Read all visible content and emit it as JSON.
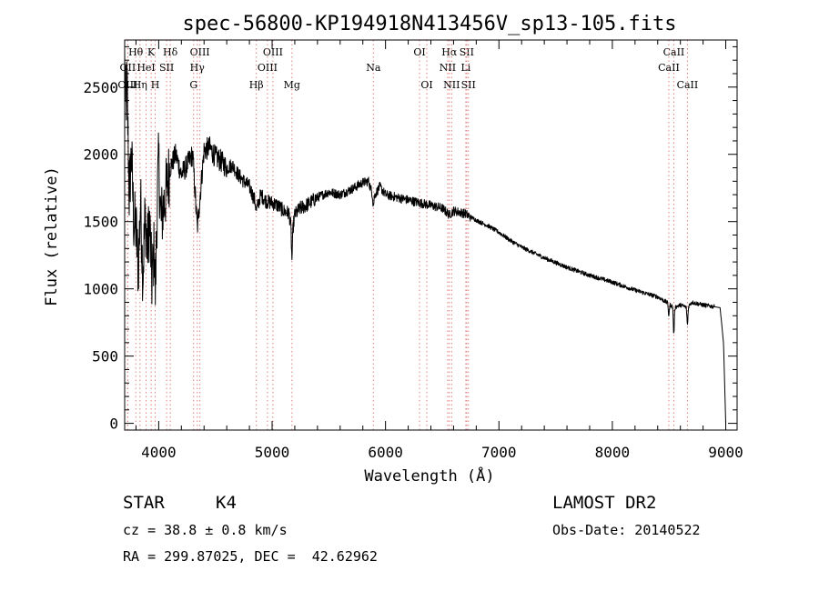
{
  "chart_data": {
    "type": "line",
    "title": "spec-56800-KP194918N413456V_sp13-105.fits",
    "xlabel": "Wavelength (Å)",
    "ylabel": "Flux (relative)",
    "xlim": [
      3700,
      9100
    ],
    "ylim": [
      -50,
      2850
    ],
    "xticks": [
      4000,
      5000,
      6000,
      7000,
      8000,
      9000
    ],
    "yticks": [
      0,
      500,
      1000,
      1500,
      2000,
      2500
    ],
    "grid": false,
    "line_color": "#000000",
    "marker_line_color": "#e08080",
    "spectrum_anchors": {
      "x": [
        3700,
        3710,
        3720,
        3740,
        3760,
        3780,
        3800,
        3820,
        3840,
        3860,
        3880,
        3900,
        3920,
        3940,
        3960,
        3970,
        3990,
        4000,
        4020,
        4050,
        4080,
        4100,
        4150,
        4200,
        4250,
        4300,
        4340,
        4400,
        4450,
        4500,
        4550,
        4600,
        4650,
        4700,
        4750,
        4800,
        4850,
        4861,
        4900,
        4950,
        5000,
        5050,
        5100,
        5150,
        5175,
        5200,
        5250,
        5300,
        5350,
        5400,
        5500,
        5600,
        5700,
        5800,
        5850,
        5893,
        5950,
        6000,
        6100,
        6200,
        6300,
        6400,
        6500,
        6563,
        6600,
        6700,
        6800,
        6900,
        7000,
        7100,
        7200,
        7400,
        7600,
        7800,
        8000,
        8200,
        8400,
        8498,
        8542,
        8600,
        8662,
        8700,
        8800,
        8950,
        8980,
        9000
      ],
      "y": [
        2700,
        2300,
        2550,
        1700,
        2000,
        1500,
        1450,
        1150,
        1650,
        1100,
        1550,
        1300,
        1500,
        1050,
        1300,
        980,
        1750,
        1950,
        1500,
        1650,
        1800,
        1900,
        2000,
        1850,
        1920,
        2000,
        1450,
        2030,
        2050,
        1980,
        1950,
        1900,
        1920,
        1850,
        1800,
        1760,
        1650,
        1580,
        1700,
        1650,
        1640,
        1620,
        1580,
        1560,
        1400,
        1550,
        1600,
        1620,
        1650,
        1680,
        1720,
        1700,
        1740,
        1790,
        1800,
        1680,
        1760,
        1700,
        1680,
        1660,
        1640,
        1620,
        1600,
        1550,
        1580,
        1560,
        1510,
        1470,
        1420,
        1360,
        1310,
        1230,
        1160,
        1100,
        1050,
        990,
        940,
        890,
        860,
        880,
        860,
        900,
        880,
        860,
        600,
        0
      ]
    },
    "absorption_dips": [
      {
        "x": 5175,
        "depth": 180
      },
      {
        "x": 5893,
        "depth": 60
      },
      {
        "x": 8498,
        "depth": 90
      },
      {
        "x": 8542,
        "depth": 200
      },
      {
        "x": 8662,
        "depth": 130
      }
    ],
    "line_markers": [
      {
        "label": "Hθ",
        "x": 3798,
        "row": 0
      },
      {
        "label": "K",
        "x": 3934,
        "row": 0
      },
      {
        "label": "Hδ",
        "x": 4102,
        "row": 0
      },
      {
        "label": "OIII",
        "x": 4363,
        "row": 0
      },
      {
        "label": "OIII",
        "x": 5007,
        "row": 0
      },
      {
        "label": "OI",
        "x": 6300,
        "row": 0
      },
      {
        "label": "Hα",
        "x": 6563,
        "row": 0
      },
      {
        "label": "SII",
        "x": 6716,
        "row": 0
      },
      {
        "label": "CaII",
        "x": 8542,
        "row": 0
      },
      {
        "label": "OII",
        "x": 3727,
        "row": 1
      },
      {
        "label": "HeI",
        "x": 3889,
        "row": 1
      },
      {
        "label": "SII",
        "x": 4070,
        "row": 1
      },
      {
        "label": "Hγ",
        "x": 4340,
        "row": 1
      },
      {
        "label": "OIII",
        "x": 4959,
        "row": 1
      },
      {
        "label": "Na",
        "x": 5893,
        "row": 1
      },
      {
        "label": "NII",
        "x": 6548,
        "row": 1
      },
      {
        "label": "Li",
        "x": 6708,
        "row": 1
      },
      {
        "label": "CaII",
        "x": 8498,
        "row": 1
      },
      {
        "label": "OIII",
        "x": 3727,
        "row": 2
      },
      {
        "label": "Hη",
        "x": 3835,
        "row": 2
      },
      {
        "label": "H",
        "x": 3969,
        "row": 2
      },
      {
        "label": "G",
        "x": 4308,
        "row": 2
      },
      {
        "label": "Hβ",
        "x": 4861,
        "row": 2
      },
      {
        "label": "Mg",
        "x": 5175,
        "row": 2
      },
      {
        "label": "OI",
        "x": 6364,
        "row": 2
      },
      {
        "label": "NII",
        "x": 6583,
        "row": 2
      },
      {
        "label": "SII",
        "x": 6731,
        "row": 2
      },
      {
        "label": "CaII",
        "x": 8662,
        "row": 2
      }
    ]
  },
  "info": {
    "object_class": "STAR",
    "subclass": "K4",
    "survey": "LAMOST DR2",
    "cz": "cz = 38.8 ± 0.8 km/s",
    "obs_date": "Obs-Date: 20140522",
    "coords": "RA = 299.87025, DEC =  42.62962"
  }
}
